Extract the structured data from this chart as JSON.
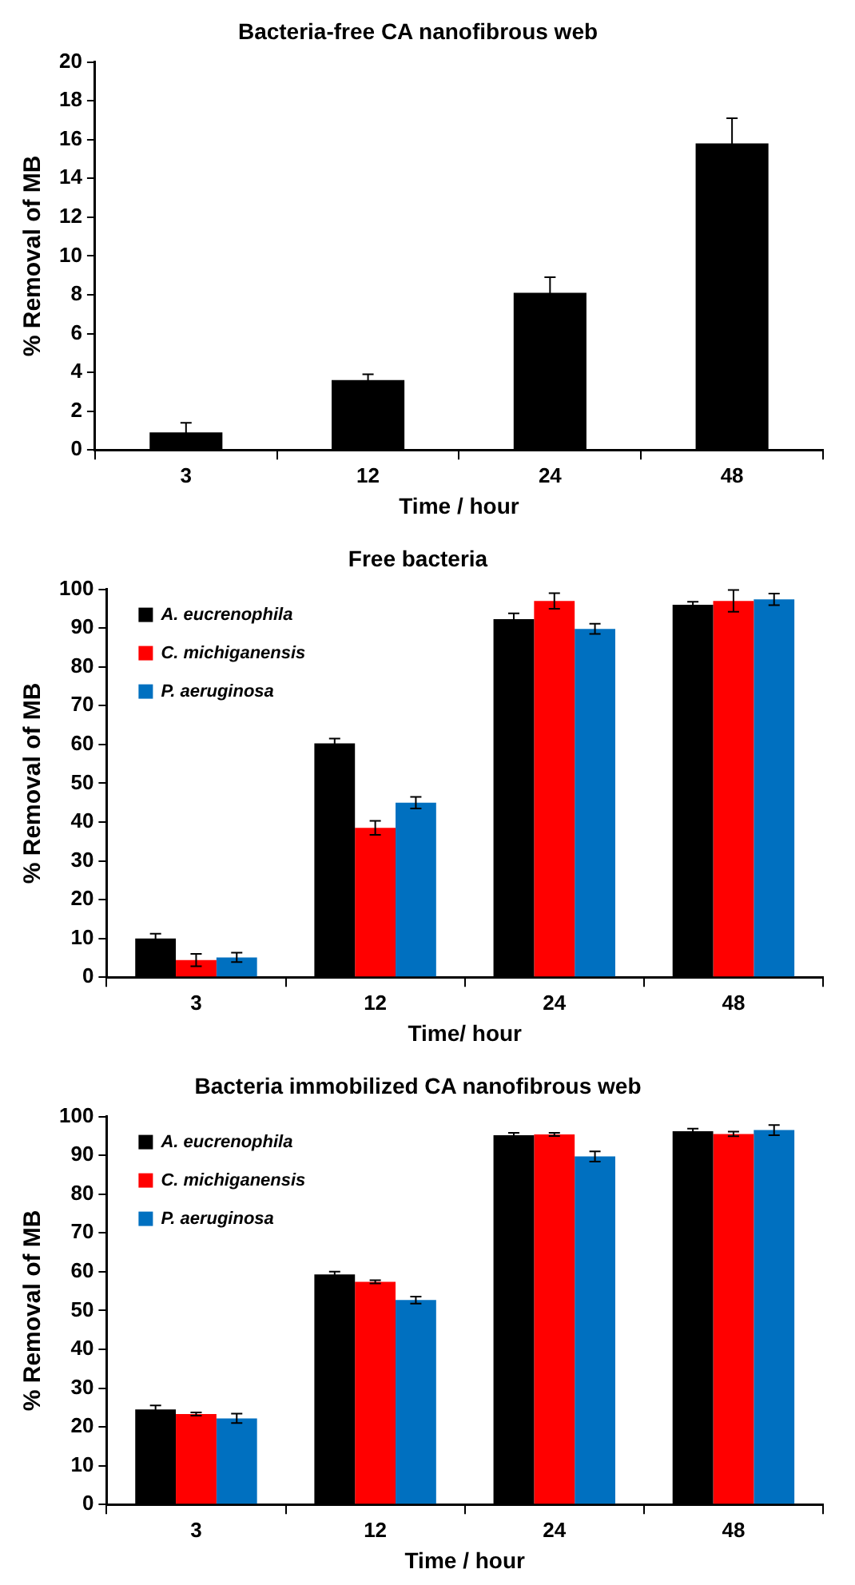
{
  "chart_data": [
    {
      "type": "bar",
      "title": "Bacteria-free CA nanofibrous web",
      "xlabel": "Time / hour",
      "ylabel": "% Removal of MB",
      "categories": [
        "3",
        "12",
        "24",
        "48"
      ],
      "series": [
        {
          "color": "#000000",
          "values": [
            0.9,
            3.6,
            8.1,
            15.8
          ],
          "errors": [
            0.5,
            0.3,
            0.8,
            1.3
          ]
        }
      ],
      "ylim": [
        0,
        20
      ],
      "yticks": [
        0,
        2,
        4,
        6,
        8,
        10,
        12,
        14,
        16,
        18,
        20
      ]
    },
    {
      "type": "bar",
      "title": "Free bacteria",
      "xlabel": "Time/ hour",
      "ylabel": "% Removal of MB",
      "categories": [
        "3",
        "12",
        "24",
        "48"
      ],
      "series": [
        {
          "name": "A. eucrenophila",
          "color": "#000000",
          "values": [
            10,
            60.3,
            92.3,
            96
          ],
          "errors": [
            1.2,
            1.2,
            1.5,
            0.8
          ]
        },
        {
          "name": "C. michiganensis",
          "color": "#ff0000",
          "values": [
            4.4,
            38.5,
            97,
            97
          ],
          "errors": [
            1.6,
            1.8,
            2,
            2.8
          ]
        },
        {
          "name": "P. aeruginosa",
          "color": "#0070c0",
          "values": [
            5.1,
            45,
            89.8,
            97.4
          ],
          "errors": [
            1.2,
            1.5,
            1.3,
            1.5
          ]
        }
      ],
      "ylim": [
        0,
        100
      ],
      "yticks": [
        0,
        10,
        20,
        30,
        40,
        50,
        60,
        70,
        80,
        90,
        100
      ],
      "legend": "top left"
    },
    {
      "type": "bar",
      "title": "Bacteria immobilized CA nanofibrous web",
      "xlabel": "Time / hour",
      "ylabel": "% Removal of MB",
      "categories": [
        "3",
        "12",
        "24",
        "48"
      ],
      "series": [
        {
          "name": "A. eucrenophila",
          "color": "#000000",
          "values": [
            24.5,
            59.3,
            95.2,
            96.2
          ],
          "errors": [
            1,
            0.7,
            0.6,
            0.7
          ]
        },
        {
          "name": "C. michiganensis",
          "color": "#ff0000",
          "values": [
            23.3,
            57.4,
            95.4,
            95.5
          ],
          "errors": [
            0.4,
            0.4,
            0.4,
            0.6
          ]
        },
        {
          "name": "P. aeruginosa",
          "color": "#0070c0",
          "values": [
            22.2,
            52.7,
            89.7,
            96.5
          ],
          "errors": [
            1.2,
            0.9,
            1.3,
            1.3
          ]
        }
      ],
      "ylim": [
        0,
        100
      ],
      "yticks": [
        0,
        10,
        20,
        30,
        40,
        50,
        60,
        70,
        80,
        90,
        100
      ],
      "legend": "top left"
    }
  ]
}
